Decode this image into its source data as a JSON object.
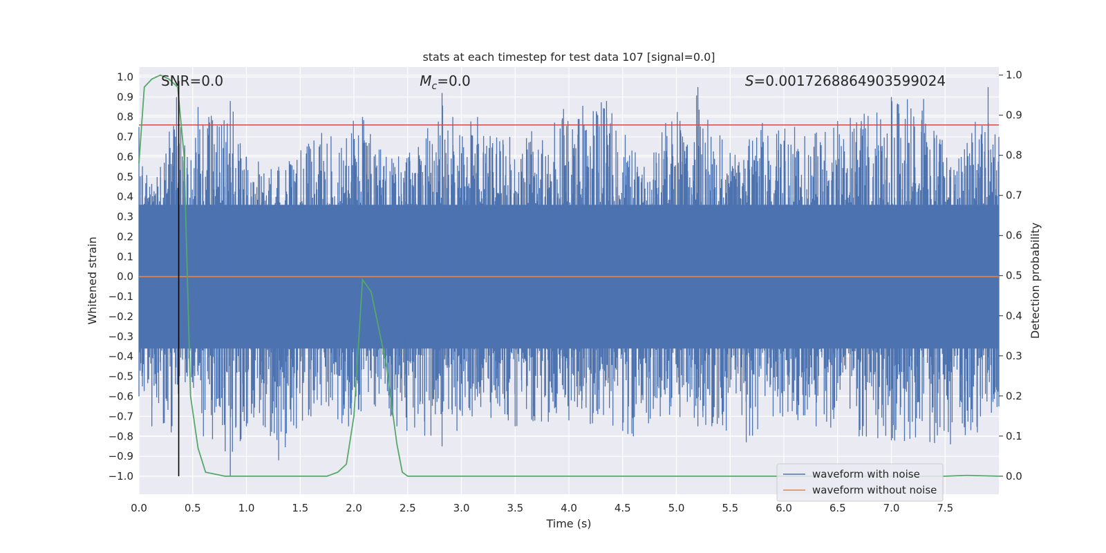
{
  "chart_data": {
    "type": "line",
    "title": "stats at each timestep for test data 107 [signal=0.0]",
    "xlabel": "Time (s)",
    "ylabel_left": "Whitened strain",
    "ylabel_right": "Detection probability",
    "xlim": [
      0.0,
      8.0
    ],
    "ylim_left": [
      -1.09,
      1.05
    ],
    "ylim_right": [
      -0.045,
      1.02
    ],
    "x_ticks": [
      0.0,
      0.5,
      1.0,
      1.5,
      2.0,
      2.5,
      3.0,
      3.5,
      4.0,
      4.5,
      5.0,
      5.5,
      6.0,
      6.5,
      7.0,
      7.5
    ],
    "x_tick_labels": [
      "0.0",
      "0.5",
      "1.0",
      "1.5",
      "2.0",
      "2.5",
      "3.0",
      "3.5",
      "4.0",
      "4.5",
      "5.0",
      "5.5",
      "6.0",
      "6.5",
      "7.0",
      "7.5"
    ],
    "y_ticks_left": [
      1.0,
      0.9,
      0.8,
      0.7,
      0.6,
      0.5,
      0.4,
      0.3,
      0.2,
      0.1,
      0.0,
      -0.1,
      -0.2,
      -0.3,
      -0.4,
      -0.5,
      -0.6,
      -0.7,
      -0.8,
      -0.9,
      -1.0
    ],
    "y_tick_labels_left": [
      "1.0",
      "0.9",
      "0.8",
      "0.7",
      "0.6",
      "0.5",
      "0.4",
      "0.3",
      "0.2",
      "0.1",
      "0.0",
      "−0.1",
      "−0.2",
      "−0.3",
      "−0.4",
      "−0.5",
      "−0.6",
      "−0.7",
      "−0.8",
      "−0.9",
      "−1.0"
    ],
    "y_ticks_right": [
      1.0,
      0.9,
      0.8,
      0.7,
      0.6,
      0.5,
      0.4,
      0.3,
      0.2,
      0.1,
      0.0
    ],
    "y_tick_labels_right": [
      "1.0",
      "0.9",
      "0.8",
      "0.7",
      "0.6",
      "0.5",
      "0.4",
      "0.3",
      "0.2",
      "0.1",
      "0.0"
    ],
    "annotations": [
      {
        "key": "snr",
        "text": "SNR=0.0",
        "x": 0.5
      },
      {
        "key": "mc",
        "text": "=0.0",
        "x": 2.87
      },
      {
        "key": "s",
        "text": "=0.0017268864903599024",
        "x": 6.55
      }
    ],
    "annotation_math": {
      "mc_main": "M",
      "mc_sub": "c",
      "s_main": "S"
    },
    "noise_envelope": {
      "description_free": true,
      "upper": [
        [
          0.0,
          0.75
        ],
        [
          0.1,
          0.45
        ],
        [
          0.2,
          0.55
        ],
        [
          0.35,
          0.9
        ],
        [
          0.45,
          0.6
        ],
        [
          0.55,
          0.85
        ],
        [
          0.65,
          0.8
        ],
        [
          0.85,
          0.88
        ],
        [
          1.0,
          0.6
        ],
        [
          1.3,
          0.55
        ],
        [
          1.7,
          0.72
        ],
        [
          2.08,
          0.8
        ],
        [
          2.3,
          0.6
        ],
        [
          2.6,
          0.65
        ],
        [
          2.82,
          0.92
        ],
        [
          2.92,
          0.8
        ],
        [
          3.15,
          0.8
        ],
        [
          3.45,
          0.7
        ],
        [
          3.95,
          0.84
        ],
        [
          4.35,
          0.88
        ],
        [
          4.7,
          0.55
        ],
        [
          4.9,
          0.77
        ],
        [
          5.2,
          0.95
        ],
        [
          5.5,
          0.62
        ],
        [
          5.8,
          0.77
        ],
        [
          6.1,
          0.75
        ],
        [
          6.5,
          0.78
        ],
        [
          7.0,
          0.9
        ],
        [
          7.3,
          0.89
        ],
        [
          7.65,
          0.6
        ],
        [
          7.9,
          0.95
        ],
        [
          8.0,
          0.7
        ]
      ],
      "lower": [
        [
          0.0,
          -0.6
        ],
        [
          0.12,
          -0.75
        ],
        [
          0.3,
          -0.78
        ],
        [
          0.45,
          -0.5
        ],
        [
          0.6,
          -0.8
        ],
        [
          0.85,
          -1.0
        ],
        [
          1.0,
          -0.75
        ],
        [
          1.3,
          -0.92
        ],
        [
          1.6,
          -0.7
        ],
        [
          1.95,
          -0.75
        ],
        [
          2.2,
          -0.65
        ],
        [
          2.4,
          -0.75
        ],
        [
          2.82,
          -0.85
        ],
        [
          3.1,
          -0.7
        ],
        [
          3.5,
          -0.75
        ],
        [
          4.0,
          -0.72
        ],
        [
          4.6,
          -0.8
        ],
        [
          4.85,
          -0.7
        ],
        [
          5.2,
          -0.75
        ],
        [
          5.65,
          -0.83
        ],
        [
          5.9,
          -0.7
        ],
        [
          6.3,
          -0.75
        ],
        [
          6.7,
          -0.8
        ],
        [
          7.0,
          -0.82
        ],
        [
          7.55,
          -0.84
        ],
        [
          7.8,
          -0.78
        ],
        [
          8.0,
          -0.65
        ]
      ]
    },
    "series": [
      {
        "name": "waveform with noise",
        "color": "#4c72b0",
        "style": "dense-noise"
      },
      {
        "name": "waveform without noise",
        "color": "#dd8452",
        "x": [
          0.0,
          8.0
        ],
        "y": [
          0.0,
          0.0
        ]
      },
      {
        "name": "detection probability",
        "axis": "right",
        "color": "#55a868",
        "x": [
          0.0,
          0.05,
          0.12,
          0.2,
          0.28,
          0.36,
          0.42,
          0.48,
          0.55,
          0.62,
          0.8,
          1.0,
          1.5,
          1.75,
          1.85,
          1.93,
          2.0,
          2.08,
          2.16,
          2.3,
          2.4,
          2.45,
          2.5,
          3.0,
          4.0,
          5.0,
          6.0,
          7.0,
          7.5,
          7.7,
          8.0
        ],
        "y": [
          0.78,
          0.97,
          0.99,
          1.0,
          0.99,
          0.97,
          0.8,
          0.2,
          0.07,
          0.01,
          0.0,
          0.0,
          0.0,
          0.0,
          0.01,
          0.03,
          0.15,
          0.49,
          0.46,
          0.28,
          0.08,
          0.01,
          0.0,
          0.0,
          0.0,
          0.0,
          0.0,
          0.0,
          0.0,
          0.002,
          0.0
        ]
      }
    ],
    "threshold_line": {
      "axis": "left",
      "y": 0.76,
      "color": "#c44e52"
    },
    "detection_marker": {
      "x": 0.37,
      "y_from": -1.0,
      "y_to": 0.98,
      "color": "#000000"
    },
    "legend": {
      "position": "lower-right",
      "entries": [
        {
          "label": "waveform with noise",
          "color": "#4c72b0"
        },
        {
          "label": "waveform without noise",
          "color": "#dd8452"
        }
      ]
    },
    "grid": true,
    "colors": {
      "background": "#eaeaf2",
      "grid": "#ffffff",
      "noise": "#4c72b0"
    }
  }
}
